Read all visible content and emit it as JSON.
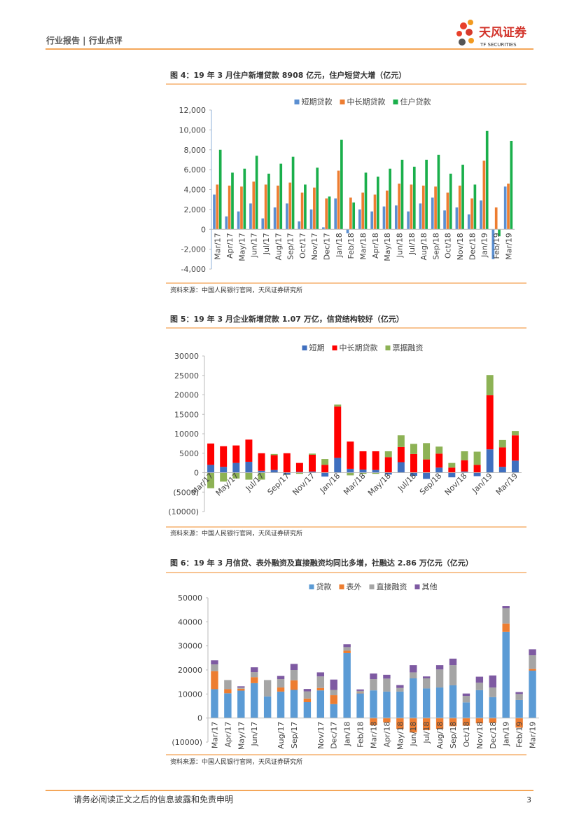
{
  "header": {
    "left": "行业报告 | 行业点评",
    "logo_name": "天风证券",
    "logo_sub": "TF SECURITIES"
  },
  "chart_data": [
    {
      "type": "bar",
      "title": "图 4：19 年 3 月住户新增贷款 8908 亿元，住户短贷大增（亿元）",
      "categories": [
        "Mar/17",
        "Apr/17",
        "May/17",
        "Jun/17",
        "Jul/17",
        "Aug/17",
        "Sep/17",
        "Oct/17",
        "Nov/17",
        "Dec/17",
        "Jan/18",
        "Feb/18",
        "Mar/18",
        "Apr/18",
        "May/18",
        "Jun/18",
        "Jul/18",
        "Aug/18",
        "Sep/18",
        "Oct/18",
        "Nov/18",
        "Dec/18",
        "Jan/19",
        "Feb/19",
        "Mar/19"
      ],
      "series": [
        {
          "name": "短期贷款",
          "color": "#5b8fd1",
          "values": [
            3500,
            1300,
            1800,
            2600,
            1100,
            2200,
            2600,
            800,
            2000,
            200,
            3100,
            -400,
            2000,
            1800,
            2300,
            2400,
            1800,
            2600,
            3200,
            1900,
            2200,
            1500,
            2900,
            -3000,
            4300
          ]
        },
        {
          "name": "中长期贷款",
          "color": "#ed7d31",
          "values": [
            4500,
            4400,
            4300,
            4800,
            4500,
            4400,
            4700,
            3700,
            4200,
            3100,
            5900,
            3200,
            3700,
            3500,
            3900,
            4600,
            4500,
            4400,
            4300,
            3700,
            4400,
            3100,
            6900,
            2200,
            4600
          ]
        },
        {
          "name": "住户贷款",
          "color": "#1aaf4b",
          "values": [
            8000,
            5700,
            6100,
            7400,
            5600,
            6600,
            7300,
            4500,
            6200,
            3300,
            9000,
            2700,
            5700,
            5300,
            6100,
            7000,
            6300,
            7000,
            7500,
            5600,
            6500,
            4500,
            9900,
            -700,
            8900
          ]
        }
      ],
      "ylim": [
        -4000,
        12000
      ],
      "yticks": [
        {
          "value": -4000,
          "label": "-4,000"
        },
        {
          "value": -2000,
          "label": "-2,000"
        },
        0,
        {
          "value": 2000,
          "label": "2,000"
        },
        {
          "value": 4000,
          "label": "4,000"
        },
        {
          "value": 6000,
          "label": "6,000"
        },
        {
          "value": 8000,
          "label": "8,000"
        },
        {
          "value": 10000,
          "label": "10,000"
        },
        {
          "value": 12000,
          "label": "12,000"
        }
      ]
    },
    {
      "type": "stacked_bar",
      "title": "图 5：19 年 3 月企业新增贷款 1.07 万亿，信贷结构较好（亿元）",
      "categories": [
        "Mar/17",
        null,
        "May/17",
        null,
        "Jul/17",
        null,
        "Sep/17",
        null,
        "Nov/17",
        null,
        "Jan/18",
        null,
        "Mar/18",
        null,
        "May/18",
        null,
        "Jul/18",
        null,
        "Sep/18",
        null,
        "Nov/18",
        null,
        "Jan/19",
        null,
        "Mar/19"
      ],
      "series": [
        {
          "name": "短期",
          "color": "#3f6fbf",
          "values": [
            2000,
            1500,
            2500,
            2800,
            500,
            700,
            -500,
            200,
            300,
            -1000,
            3800,
            1000,
            800,
            700,
            -500,
            2700,
            -800,
            -1600,
            1300,
            -1200,
            300,
            -900,
            6000,
            1500,
            3100
          ]
        },
        {
          "name": "中长期贷款",
          "color": "#ff0000",
          "values": [
            5500,
            5300,
            4500,
            5700,
            4500,
            3800,
            5000,
            2300,
            4300,
            2000,
            13200,
            7000,
            4700,
            4800,
            4000,
            3900,
            4800,
            3400,
            3600,
            1300,
            2900,
            2000,
            13900,
            5000,
            6500
          ]
        },
        {
          "name": "票据融资",
          "color": "#8db255",
          "values": [
            -4000,
            -2300,
            -1500,
            -1800,
            -1800,
            300,
            -100,
            -300,
            300,
            1500,
            500,
            -700,
            -300,
            -300,
            1500,
            3000,
            2600,
            4200,
            1800,
            1200,
            2300,
            3400,
            5200,
            1900,
            1100
          ]
        }
      ],
      "ylim": [
        -10000,
        30000
      ],
      "yticks": [
        {
          "value": -10000,
          "label": "(10000)"
        },
        {
          "value": -5000,
          "label": "(5000)"
        },
        0,
        5000,
        10000,
        15000,
        20000,
        25000,
        30000
      ],
      "negative_tick_color": "#ff0000"
    },
    {
      "type": "stacked_bar",
      "title": "图 6：19 年 3 月信贷、表外融资及直接融资均同比多增，社融达 2.86 万亿元（亿元）",
      "categories": [
        "Mar/17",
        "Apr/17",
        "May/17",
        "Jun/17",
        null,
        "Aug/17",
        "Sep/17",
        null,
        "Nov/17",
        "Dec/17",
        "Jan/18",
        "Feb/18",
        "Mar/18",
        "Apr/18",
        "May/18",
        "Jun/18",
        "Jul/18",
        "Aug/18",
        "Sep/18",
        "Oct/18",
        "Nov/18",
        "Dec/18",
        "Jan/19",
        "Feb/19",
        "Mar/19"
      ],
      "series": [
        {
          "name": "贷款",
          "color": "#5b9bd5",
          "values": [
            12000,
            10300,
            11400,
            14500,
            9000,
            11000,
            11700,
            6600,
            11500,
            5800,
            27000,
            10300,
            11500,
            11000,
            11000,
            16500,
            12300,
            12700,
            13600,
            6500,
            11600,
            8700,
            35800,
            7500,
            19700
          ]
        },
        {
          "name": "表外",
          "color": "#ed7d31",
          "values": [
            7500,
            1700,
            800,
            2500,
            0,
            1700,
            4000,
            1500,
            1000,
            3700,
            1000,
            200,
            -3000,
            -1800,
            -4500,
            -6000,
            -5000,
            -4500,
            -3400,
            -3200,
            -2200,
            -2000,
            3500,
            -4000,
            700
          ]
        },
        {
          "name": "直接融资",
          "color": "#a5a5a5",
          "values": [
            2800,
            3800,
            500,
            2100,
            6800,
            3500,
            4300,
            3000,
            4800,
            2200,
            1500,
            800,
            4700,
            5400,
            1500,
            2500,
            4200,
            7500,
            8400,
            2700,
            3100,
            4000,
            6300,
            2500,
            5700
          ]
        },
        {
          "name": "其他",
          "color": "#7e5aa2",
          "values": [
            1700,
            0,
            500,
            2000,
            0,
            1300,
            2500,
            1000,
            1700,
            4300,
            1200,
            600,
            2300,
            1600,
            1200,
            3000,
            800,
            1800,
            2700,
            1000,
            2500,
            5000,
            900,
            800,
            2500
          ]
        }
      ],
      "ylim": [
        -10000,
        50000
      ],
      "yticks": [
        {
          "value": -10000,
          "label": "(10000)"
        },
        0,
        10000,
        20000,
        30000,
        40000,
        50000
      ],
      "negative_tick_color": "#ff0000"
    }
  ],
  "sources": [
    "资料来源：中国人民银行官网，天风证券研究所",
    "资料来源：中国人民银行官网，天风证券研究所",
    "资料来源：中国人民银行官网，天风证券研究所"
  ],
  "footer": {
    "text": "请务必阅读正文之后的信息披露和免责申明",
    "page": 3
  }
}
